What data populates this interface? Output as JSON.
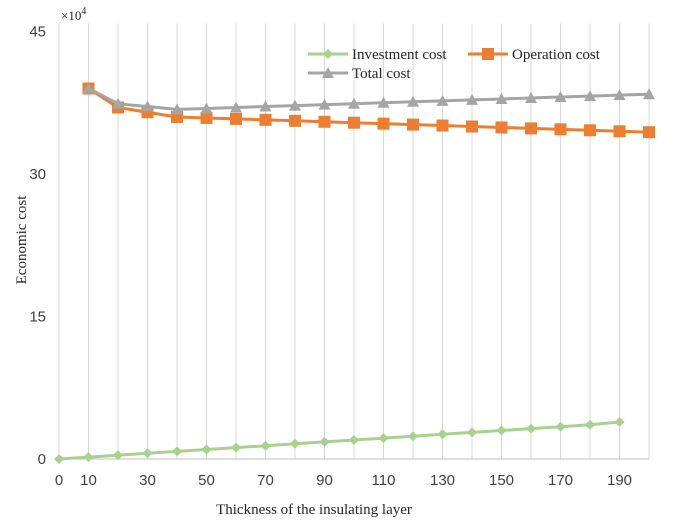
{
  "chart_data": {
    "type": "line",
    "multiplier_label": "×10",
    "multiplier_exponent": "4",
    "xlabel": "Thickness of the insulating  layer",
    "ylabel": "Economic cost",
    "xlim": [
      0,
      190
    ],
    "ylim": [
      0,
      45
    ],
    "x_ticks": [
      "0",
      "10",
      "30",
      "50",
      "70",
      "90",
      "110",
      "130",
      "150",
      "170",
      "190"
    ],
    "x_tick_values": [
      0,
      10,
      30,
      50,
      70,
      90,
      110,
      130,
      150,
      170,
      190
    ],
    "y_ticks": [
      "0",
      "15",
      "30",
      "45"
    ],
    "y_tick_values": [
      0,
      15,
      30,
      45
    ],
    "grid": "vertical lines every 10",
    "legend_position": "top-right",
    "series": [
      {
        "name": "Investment cost",
        "color": "#a9d18e",
        "marker": "diamond",
        "x": [
          0,
          10,
          20,
          30,
          40,
          50,
          60,
          70,
          80,
          90,
          100,
          110,
          120,
          130,
          140,
          150,
          160,
          170,
          180,
          190
        ],
        "values": [
          0,
          0.2,
          0.4,
          0.6,
          0.8,
          1.0,
          1.2,
          1.4,
          1.6,
          1.8,
          2.0,
          2.2,
          2.4,
          2.6,
          2.8,
          3.0,
          3.2,
          3.4,
          3.6,
          3.9
        ]
      },
      {
        "name": "Operation cost",
        "color": "#ed7d31",
        "marker": "square",
        "x": [
          10,
          20,
          30,
          40,
          50,
          60,
          70,
          80,
          90,
          100,
          110,
          120,
          130,
          140,
          150,
          160,
          170,
          180,
          190,
          200
        ],
        "values": [
          39.0,
          37.0,
          36.5,
          36.0,
          35.9,
          35.8,
          35.7,
          35.6,
          35.5,
          35.4,
          35.3,
          35.2,
          35.1,
          35.0,
          34.9,
          34.8,
          34.7,
          34.6,
          34.5,
          34.4
        ]
      },
      {
        "name": "Total cost",
        "color": "#a5a5a5",
        "marker": "triangle",
        "x": [
          10,
          20,
          30,
          40,
          50,
          60,
          70,
          80,
          90,
          100,
          110,
          120,
          130,
          140,
          150,
          160,
          170,
          180,
          190,
          200
        ],
        "values": [
          39.0,
          37.4,
          37.1,
          36.8,
          36.9,
          37.0,
          37.1,
          37.2,
          37.3,
          37.4,
          37.5,
          37.6,
          37.7,
          37.8,
          37.9,
          38.0,
          38.1,
          38.2,
          38.3,
          38.4
        ]
      }
    ]
  }
}
